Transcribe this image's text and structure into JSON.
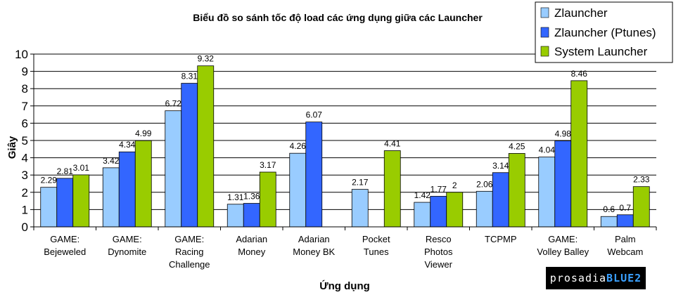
{
  "chart_data": {
    "type": "bar",
    "title": "Biểu đồ so sánh tốc độ load các ứng dụng giữa các Launcher",
    "xlabel": "Ứng dụng",
    "ylabel": "Giây",
    "ylim": [
      0,
      10
    ],
    "yticks": [
      "0",
      "1",
      "2",
      "3",
      "4",
      "5",
      "6",
      "7",
      "8",
      "9",
      "10"
    ],
    "grid": true,
    "legend_position": "top-right",
    "categories": [
      [
        "GAME:",
        "Bejeweled"
      ],
      [
        "GAME:",
        "Dynomite"
      ],
      [
        "GAME:",
        "Racing",
        "Challenge"
      ],
      [
        "Adarian",
        "Money"
      ],
      [
        "Adarian",
        "Money BK"
      ],
      [
        "Pocket",
        "Tunes"
      ],
      [
        "Resco",
        "Photos",
        "Viewer"
      ],
      [
        "TCPMP"
      ],
      [
        "GAME:",
        "Volley Balley"
      ],
      [
        "Palm",
        "Webcam"
      ]
    ],
    "series": [
      {
        "name": "Zlauncher",
        "color": "#99ccff",
        "values": [
          2.29,
          3.42,
          6.72,
          1.31,
          4.26,
          2.17,
          1.42,
          2.06,
          4.04,
          0.6
        ],
        "labels": [
          "2.29",
          "3.42",
          "6.72",
          "1.31",
          "4.26",
          "2.17",
          "1.42",
          "2.06",
          "4.04",
          "0.6"
        ]
      },
      {
        "name": "Zlauncher (Ptunes)",
        "color": "#3366ff",
        "values": [
          2.81,
          4.34,
          8.31,
          1.36,
          6.07,
          null,
          1.77,
          3.14,
          4.98,
          0.7
        ],
        "labels": [
          "2.81",
          "4.34",
          "8.31",
          "1.36",
          "6.07",
          "",
          "1.77",
          "3.14",
          "4.98",
          "0.7"
        ]
      },
      {
        "name": "System Launcher",
        "color": "#99cc00",
        "values": [
          3.01,
          4.99,
          9.32,
          3.17,
          null,
          4.41,
          2,
          4.25,
          8.46,
          2.33
        ],
        "labels": [
          "3.01",
          "4.99",
          "9.32",
          "3.17",
          "",
          "4.41",
          "2",
          "4.25",
          "8.46",
          "2.33"
        ]
      }
    ]
  },
  "logo": {
    "part1": "prosadia",
    "part2": "BLUE2"
  }
}
